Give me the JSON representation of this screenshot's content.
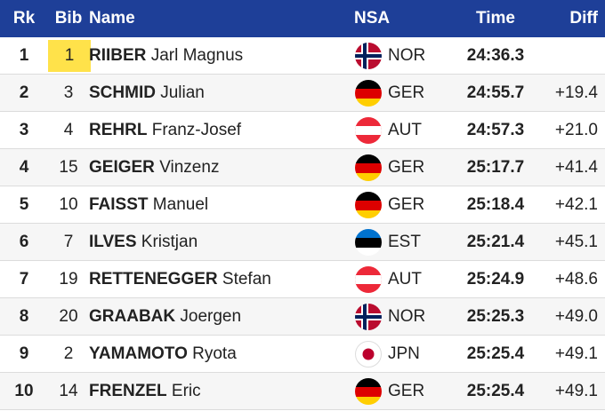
{
  "table": {
    "header": [
      "Rk",
      "Bib",
      "Name",
      "NSA",
      "Time",
      "Diff"
    ],
    "rows": [
      {
        "rank": "1",
        "bib": "1",
        "surname": "RIIBER",
        "given": "Jarl Magnus",
        "nsa": "NOR",
        "time": "24:36.3",
        "diff": null
      },
      {
        "rank": "2",
        "bib": "3",
        "surname": "SCHMID",
        "given": "Julian",
        "nsa": "GER",
        "time": "24:55.7",
        "diff": "+19.4"
      },
      {
        "rank": "3",
        "bib": "4",
        "surname": "REHRL",
        "given": "Franz-Josef",
        "nsa": "AUT",
        "time": "24:57.3",
        "diff": "+21.0"
      },
      {
        "rank": "4",
        "bib": "15",
        "surname": "GEIGER",
        "given": "Vinzenz",
        "nsa": "GER",
        "time": "25:17.7",
        "diff": "+41.4"
      },
      {
        "rank": "5",
        "bib": "10",
        "surname": "FAISST",
        "given": "Manuel",
        "nsa": "GER",
        "time": "25:18.4",
        "diff": "+42.1"
      },
      {
        "rank": "6",
        "bib": "7",
        "surname": "ILVES",
        "given": "Kristjan",
        "nsa": "EST",
        "time": "25:21.4",
        "diff": "+45.1"
      },
      {
        "rank": "7",
        "bib": "19",
        "surname": "RETTENEGGER",
        "given": "Stefan",
        "nsa": "AUT",
        "time": "25:24.9",
        "diff": "+48.6"
      },
      {
        "rank": "8",
        "bib": "20",
        "surname": "GRAABAK",
        "given": "Joergen",
        "nsa": "NOR",
        "time": "25:25.3",
        "diff": "+49.0"
      },
      {
        "rank": "9",
        "bib": "2",
        "surname": "YAMAMOTO",
        "given": "Ryota",
        "nsa": "JPN",
        "time": "25:25.4",
        "diff": "+49.1"
      },
      {
        "rank": "10",
        "bib": "14",
        "surname": "FRENZEL",
        "given": "Eric",
        "nsa": "GER",
        "time": "25:25.4",
        "diff": "+49.1"
      }
    ]
  }
}
